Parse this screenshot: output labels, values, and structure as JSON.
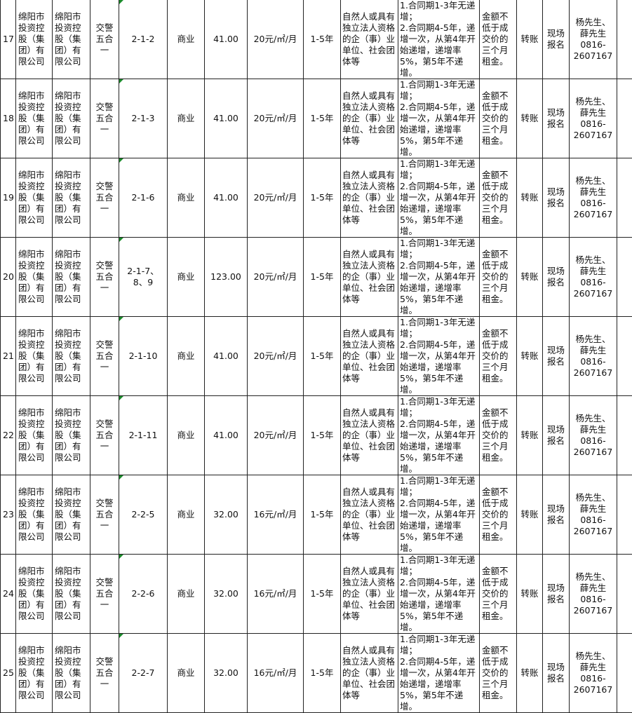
{
  "rows": [
    {
      "no": "17",
      "owner": "绵阳市投资控股（集团）有限公司",
      "lessor": "绵阳市投资控股（集团）有限公司",
      "location": "交警五合一",
      "unit": "2-1-2",
      "use": "商业",
      "area": "41.00",
      "price": "20元/㎡/月",
      "term": "1-5年",
      "eligibility": "自然人或具有独立法人资格的企（事）业单位、社会团体等",
      "increase": "1.合同期1-3年无递增；\n2.合同期4-5年，递增一次，从第4年开始递增，递增率5%，第5年不递增。",
      "deposit": "金额不低于成交价的三个月租金。",
      "payment": "转账",
      "signup": "现场报名",
      "contact": "杨先生、薛先生0816-2607167"
    },
    {
      "no": "18",
      "owner": "绵阳市投资控股（集团）有限公司",
      "lessor": "绵阳市投资控股（集团）有限公司",
      "location": "交警五合一",
      "unit": "2-1-3",
      "use": "商业",
      "area": "41.00",
      "price": "20元/㎡/月",
      "term": "1-5年",
      "eligibility": "自然人或具有独立法人资格的企（事）业单位、社会团体等",
      "increase": "1.合同期1-3年无递增；\n2.合同期4-5年，递增一次，从第4年开始递增，递增率5%，第5年不递增。",
      "deposit": "金额不低于成交价的三个月租金。",
      "payment": "转账",
      "signup": "现场报名",
      "contact": "杨先生、薛先生0816-2607167"
    },
    {
      "no": "19",
      "owner": "绵阳市投资控股（集团）有限公司",
      "lessor": "绵阳市投资控股（集团）有限公司",
      "location": "交警五合一",
      "unit": "2-1-6",
      "use": "商业",
      "area": "41.00",
      "price": "20元/㎡/月",
      "term": "1-5年",
      "eligibility": "自然人或具有独立法人资格的企（事）业单位、社会团体等",
      "increase": "1.合同期1-3年无递增；\n2.合同期4-5年，递增一次，从第4年开始递增，递增率5%，第5年不递增。",
      "deposit": "金额不低于成交价的三个月租金。",
      "payment": "转账",
      "signup": "现场报名",
      "contact": "杨先生、薛先生0816-2607167"
    },
    {
      "no": "20",
      "owner": "绵阳市投资控股（集团）有限公司",
      "lessor": "绵阳市投资控股（集团）有限公司",
      "location": "交警五合一",
      "unit": "2-1-7、8、9",
      "use": "商业",
      "area": "123.00",
      "price": "20元/㎡/月",
      "term": "1-5年",
      "eligibility": "自然人或具有独立法人资格的企（事）业单位、社会团体等",
      "increase": "1.合同期1-3年无递增；\n2.合同期4-5年，递增一次，从第4年开始递增，递增率5%，第5年不递增。",
      "deposit": "金额不低于成交价的三个月租金。",
      "payment": "转账",
      "signup": "现场报名",
      "contact": "杨先生、薛先生0816-2607167"
    },
    {
      "no": "21",
      "owner": "绵阳市投资控股（集团）有限公司",
      "lessor": "绵阳市投资控股（集团）有限公司",
      "location": "交警五合一",
      "unit": "2-1-10",
      "use": "商业",
      "area": "41.00",
      "price": "20元/㎡/月",
      "term": "1-5年",
      "eligibility": "自然人或具有独立法人资格的企（事）业单位、社会团体等",
      "increase": "1.合同期1-3年无递增；\n2.合同期4-5年，递增一次，从第4年开始递增，递增率5%，第5年不递增。",
      "deposit": "金额不低于成交价的三个月租金。",
      "payment": "转账",
      "signup": "现场报名",
      "contact": "杨先生、薛先生0816-2607167"
    },
    {
      "no": "22",
      "owner": "绵阳市投资控股（集团）有限公司",
      "lessor": "绵阳市投资控股（集团）有限公司",
      "location": "交警五合一",
      "unit": "2-1-11",
      "use": "商业",
      "area": "41.00",
      "price": "20元/㎡/月",
      "term": "1-5年",
      "eligibility": "自然人或具有独立法人资格的企（事）业单位、社会团体等",
      "increase": "1.合同期1-3年无递增；\n2.合同期4-5年，递增一次，从第4年开始递增，递增率5%，第5年不递增。",
      "deposit": "金额不低于成交价的三个月租金。",
      "payment": "转账",
      "signup": "现场报名",
      "contact": "杨先生、薛先生0816-2607167"
    },
    {
      "no": "23",
      "owner": "绵阳市投资控股（集团）有限公司",
      "lessor": "绵阳市投资控股（集团）有限公司",
      "location": "交警五合一",
      "unit": "2-2-5",
      "use": "商业",
      "area": "32.00",
      "price": "16元/㎡/月",
      "term": "1-5年",
      "eligibility": "自然人或具有独立法人资格的企（事）业单位、社会团体等",
      "increase": "1.合同期1-3年无递增；\n2.合同期4-5年，递增一次，从第4年开始递增，递增率5%，第5年不递增。",
      "deposit": "金额不低于成交价的三个月租金。",
      "payment": "转账",
      "signup": "现场报名",
      "contact": "杨先生、薛先生0816-2607167"
    },
    {
      "no": "24",
      "owner": "绵阳市投资控股（集团）有限公司",
      "lessor": "绵阳市投资控股（集团）有限公司",
      "location": "交警五合一",
      "unit": "2-2-6",
      "use": "商业",
      "area": "32.00",
      "price": "16元/㎡/月",
      "term": "1-5年",
      "eligibility": "自然人或具有独立法人资格的企（事）业单位、社会团体等",
      "increase": "1.合同期1-3年无递增；\n2.合同期4-5年，递增一次，从第4年开始递增，递增率5%，第5年不递增。",
      "deposit": "金额不低于成交价的三个月租金。",
      "payment": "转账",
      "signup": "现场报名",
      "contact": "杨先生、薛先生0816-2607167"
    },
    {
      "no": "25",
      "owner": "绵阳市投资控股（集团）有限公司",
      "lessor": "绵阳市投资控股（集团）有限公司",
      "location": "交警五合一",
      "unit": "2-2-7",
      "use": "商业",
      "area": "32.00",
      "price": "16元/㎡/月",
      "term": "1-5年",
      "eligibility": "自然人或具有独立法人资格的企（事）业单位、社会团体等",
      "increase": "1.合同期1-3年无递增；\n2.合同期4-5年，递增一次，从第4年开始递增，递增率5%，第5年不递增。",
      "deposit": "金额不低于成交价的三个月租金。",
      "payment": "转账",
      "signup": "现场报名",
      "contact": "杨先生、薛先生0816-2607167"
    }
  ]
}
